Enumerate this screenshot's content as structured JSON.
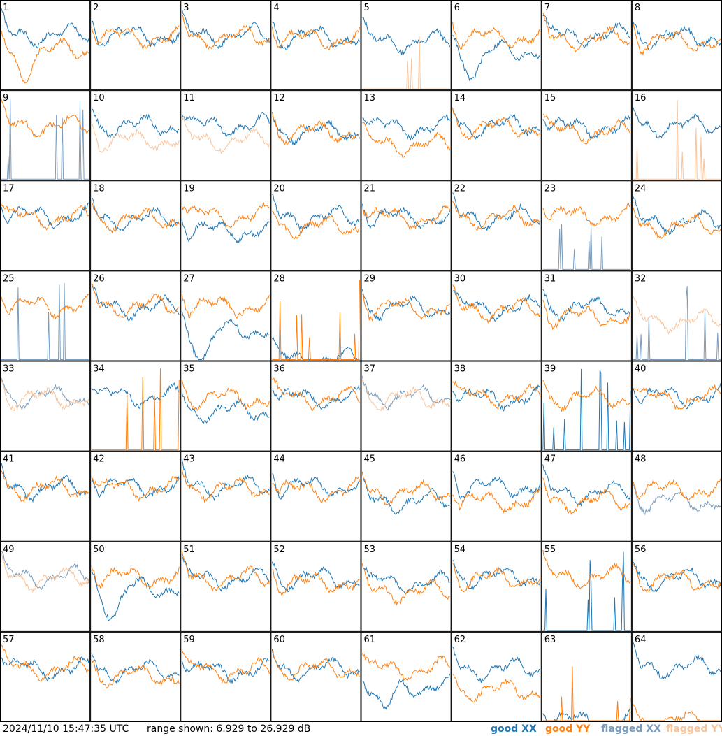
{
  "footer": {
    "timestamp": "2024/11/10 15:47:35 UTC",
    "range_text": "range shown: 6.929 to 26.929 dB"
  },
  "legend": [
    {
      "label": "good XX",
      "color": "#1f77b4"
    },
    {
      "label": "good YY",
      "color": "#ff7f0e"
    },
    {
      "label": "flagged XX",
      "color": "#7a9cbc"
    },
    {
      "label": "flagged YY",
      "color": "#f9c49a"
    }
  ],
  "colors": {
    "good_xx": "#1f77b4",
    "good_yy": "#ff7f0e",
    "flagged_xx": "#7a9cbc",
    "flagged_yy": "#f9c49a"
  },
  "chart_data": {
    "type": "line",
    "layout": "8x8 grid of small multiples (one per tile)",
    "ylim_db": [
      6.929,
      26.929
    ],
    "xlabel": "",
    "ylabel": "",
    "grid": false,
    "legend_placement": "bottom-right",
    "tiles": [
      {
        "id": "1",
        "xx": "good",
        "yy": "good",
        "xx_level": 0.62,
        "yy_level": 0.45,
        "yy_dip": 0.72
      },
      {
        "id": "2",
        "xx": "good",
        "yy": "good",
        "xx_level": 0.62,
        "yy_level": 0.6
      },
      {
        "id": "3",
        "xx": "good",
        "yy": "good",
        "xx_level": 0.62,
        "yy_level": 0.6
      },
      {
        "id": "4",
        "xx": "good",
        "yy": "good",
        "xx_level": 0.6,
        "yy_level": 0.58
      },
      {
        "id": "5",
        "xx": "good",
        "yy": "flagged",
        "xx_level": 0.55,
        "yy_level": 0.0,
        "spiky_yy": true
      },
      {
        "id": "6",
        "xx": "good",
        "yy": "good",
        "xx_level": 0.45,
        "yy_level": 0.6,
        "xx_dip": 0.75
      },
      {
        "id": "7",
        "xx": "good",
        "yy": "good",
        "xx_level": 0.62,
        "yy_level": 0.58
      },
      {
        "id": "8",
        "xx": "good",
        "yy": "good",
        "xx_level": 0.6,
        "yy_level": 0.55
      },
      {
        "id": "9",
        "xx": "flagged",
        "yy": "good",
        "xx_level": 0.0,
        "yy_level": 0.62,
        "spiky_xx": true
      },
      {
        "id": "10",
        "xx": "good",
        "yy": "flagged",
        "xx_level": 0.62,
        "yy_level": 0.45
      },
      {
        "id": "11",
        "xx": "good",
        "yy": "flagged",
        "xx_level": 0.62,
        "yy_level": 0.45
      },
      {
        "id": "12",
        "xx": "good",
        "yy": "good",
        "xx_level": 0.55,
        "yy_level": 0.55
      },
      {
        "id": "13",
        "xx": "good",
        "yy": "good",
        "xx_level": 0.6,
        "yy_level": 0.4
      },
      {
        "id": "14",
        "xx": "good",
        "yy": "good",
        "xx_level": 0.62,
        "yy_level": 0.6
      },
      {
        "id": "15",
        "xx": "good",
        "yy": "good",
        "xx_level": 0.6,
        "yy_level": 0.55
      },
      {
        "id": "16",
        "xx": "good",
        "yy": "flagged",
        "xx_level": 0.62,
        "yy_level": 0.0,
        "spiky_yy": true
      },
      {
        "id": "17",
        "xx": "good",
        "yy": "good",
        "xx_level": 0.62,
        "yy_level": 0.6
      },
      {
        "id": "18",
        "xx": "good",
        "yy": "good",
        "xx_level": 0.58,
        "yy_level": 0.58
      },
      {
        "id": "19",
        "xx": "good",
        "yy": "good",
        "xx_level": 0.45,
        "yy_level": 0.62
      },
      {
        "id": "20",
        "xx": "good",
        "yy": "good",
        "xx_level": 0.6,
        "yy_level": 0.5
      },
      {
        "id": "21",
        "xx": "good",
        "yy": "good",
        "xx_level": 0.6,
        "yy_level": 0.6
      },
      {
        "id": "22",
        "xx": "good",
        "yy": "good",
        "xx_level": 0.6,
        "yy_level": 0.6
      },
      {
        "id": "23",
        "xx": "flagged",
        "yy": "good",
        "xx_level": 0.3,
        "yy_level": 0.62,
        "spiky_xx": true
      },
      {
        "id": "24",
        "xx": "good",
        "yy": "good",
        "xx_level": 0.55,
        "yy_level": 0.5
      },
      {
        "id": "25",
        "xx": "flagged",
        "yy": "good",
        "xx_level": 0.0,
        "yy_level": 0.62,
        "spiky_xx": true
      },
      {
        "id": "26",
        "xx": "good",
        "yy": "good",
        "xx_level": 0.6,
        "yy_level": 0.62
      },
      {
        "id": "27",
        "xx": "good",
        "yy": "good",
        "xx_level": 0.35,
        "yy_level": 0.62,
        "xx_dip": 0.9
      },
      {
        "id": "28",
        "xx": "good",
        "yy": "good",
        "xx_level": 0.0,
        "yy_level": 0.0,
        "spiky_yy": true
      },
      {
        "id": "29",
        "xx": "good",
        "yy": "good",
        "xx_level": 0.6,
        "yy_level": 0.6
      },
      {
        "id": "30",
        "xx": "good",
        "yy": "good",
        "xx_level": 0.6,
        "yy_level": 0.58
      },
      {
        "id": "31",
        "xx": "good",
        "yy": "good",
        "xx_level": 0.6,
        "yy_level": 0.5
      },
      {
        "id": "32",
        "xx": "flagged",
        "yy": "flagged",
        "xx_level": 0.0,
        "yy_level": 0.45,
        "spiky_xx": true
      },
      {
        "id": "33",
        "xx": "flagged",
        "yy": "flagged",
        "xx_level": 0.62,
        "yy_level": 0.6
      },
      {
        "id": "34",
        "xx": "good",
        "yy": "good",
        "xx_level": 0.62,
        "yy_level": 0.0,
        "spiky_yy": true
      },
      {
        "id": "35",
        "xx": "good",
        "yy": "good",
        "xx_level": 0.45,
        "yy_level": 0.6
      },
      {
        "id": "36",
        "xx": "good",
        "yy": "good",
        "xx_level": 0.6,
        "yy_level": 0.6
      },
      {
        "id": "37",
        "xx": "flagged",
        "yy": "flagged",
        "xx_level": 0.62,
        "yy_level": 0.6
      },
      {
        "id": "38",
        "xx": "good",
        "yy": "good",
        "xx_level": 0.6,
        "yy_level": 0.62
      },
      {
        "id": "39",
        "xx": "good",
        "yy": "good",
        "xx_level": 0.0,
        "yy_level": 0.6,
        "spiky_xx": true
      },
      {
        "id": "40",
        "xx": "good",
        "yy": "good",
        "xx_level": 0.62,
        "yy_level": 0.6
      },
      {
        "id": "41",
        "xx": "good",
        "yy": "good",
        "xx_level": 0.6,
        "yy_level": 0.6
      },
      {
        "id": "42",
        "xx": "good",
        "yy": "good",
        "xx_level": 0.62,
        "yy_level": 0.6
      },
      {
        "id": "43",
        "xx": "good",
        "yy": "good",
        "xx_level": 0.62,
        "yy_level": 0.6
      },
      {
        "id": "44",
        "xx": "good",
        "yy": "good",
        "xx_level": 0.62,
        "yy_level": 0.58
      },
      {
        "id": "45",
        "xx": "good",
        "yy": "good",
        "xx_level": 0.45,
        "yy_level": 0.55
      },
      {
        "id": "46",
        "xx": "good",
        "yy": "good",
        "xx_level": 0.62,
        "yy_level": 0.45
      },
      {
        "id": "47",
        "xx": "good",
        "yy": "good",
        "xx_level": 0.55,
        "yy_level": 0.45
      },
      {
        "id": "48",
        "xx": "flagged",
        "yy": "good",
        "xx_level": 0.45,
        "yy_level": 0.58
      },
      {
        "id": "49",
        "xx": "flagged",
        "yy": "flagged",
        "xx_level": 0.62,
        "yy_level": 0.6
      },
      {
        "id": "50",
        "xx": "good",
        "yy": "good",
        "xx_level": 0.5,
        "yy_level": 0.62,
        "xx_dip": 0.9
      },
      {
        "id": "51",
        "xx": "good",
        "yy": "good",
        "xx_level": 0.6,
        "yy_level": 0.6
      },
      {
        "id": "52",
        "xx": "good",
        "yy": "good",
        "xx_level": 0.6,
        "yy_level": 0.55
      },
      {
        "id": "53",
        "xx": "good",
        "yy": "good",
        "xx_level": 0.55,
        "yy_level": 0.45
      },
      {
        "id": "54",
        "xx": "good",
        "yy": "good",
        "xx_level": 0.62,
        "yy_level": 0.6
      },
      {
        "id": "55",
        "xx": "good",
        "yy": "good",
        "xx_level": 0.0,
        "yy_level": 0.62,
        "spiky_xx": true
      },
      {
        "id": "56",
        "xx": "good",
        "yy": "good",
        "xx_level": 0.6,
        "yy_level": 0.58
      },
      {
        "id": "57",
        "xx": "good",
        "yy": "good",
        "xx_level": 0.6,
        "yy_level": 0.6
      },
      {
        "id": "58",
        "xx": "good",
        "yy": "good",
        "xx_level": 0.58,
        "yy_level": 0.52
      },
      {
        "id": "59",
        "xx": "good",
        "yy": "good",
        "xx_level": 0.58,
        "yy_level": 0.58
      },
      {
        "id": "60",
        "xx": "good",
        "yy": "good",
        "xx_level": 0.6,
        "yy_level": 0.6
      },
      {
        "id": "61",
        "xx": "good",
        "yy": "good",
        "xx_level": 0.4,
        "yy_level": 0.6,
        "xx_dip": 0.85
      },
      {
        "id": "62",
        "xx": "good",
        "yy": "good",
        "xx_level": 0.6,
        "yy_level": 0.35
      },
      {
        "id": "63",
        "xx": "good",
        "yy": "good",
        "xx_level": 0.0,
        "yy_level": 0.0,
        "spiky_yy": true
      },
      {
        "id": "64",
        "xx": "good",
        "yy": "good",
        "xx_level": 0.62,
        "yy_level": 0.0
      }
    ]
  }
}
